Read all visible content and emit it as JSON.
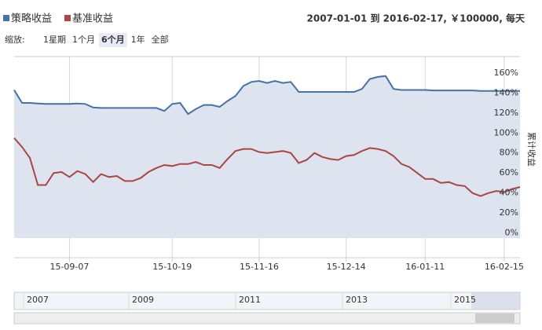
{
  "chart_data": {
    "type": "line",
    "subtitle": "2007-01-01 到 2016-02-17, ￥100000, 每天",
    "range_selector": {
      "label": "缩放:",
      "buttons": [
        "1星期",
        "1个月",
        "6个月",
        "1年",
        "全部"
      ],
      "selected": 2
    },
    "y_axis_title": "累计收益",
    "categories": [
      null,
      null,
      null,
      null,
      null,
      null,
      null,
      "15-09-07",
      null,
      null,
      null,
      null,
      null,
      null,
      null,
      null,
      null,
      null,
      null,
      null,
      "15-10-19",
      null,
      null,
      null,
      null,
      null,
      null,
      null,
      null,
      null,
      null,
      "15-11-16",
      null,
      null,
      null,
      null,
      null,
      null,
      null,
      null,
      null,
      null,
      "15-12-14",
      null,
      null,
      null,
      null,
      null,
      null,
      null,
      null,
      null,
      "16-01-11",
      null,
      null,
      null,
      null,
      null,
      null,
      null,
      null,
      null,
      "16-02-15",
      null,
      null
    ],
    "series": [
      {
        "name": "策略收益",
        "color": "#4572a7",
        "area": true,
        "values": [
          143,
          130,
          130,
          129.5,
          129,
          129,
          129,
          129,
          129.5,
          129,
          125.5,
          125,
          125,
          125,
          125,
          125,
          125,
          125,
          125,
          122,
          129,
          130,
          119,
          124,
          128,
          128,
          126,
          132,
          137,
          147,
          151,
          152,
          150,
          152,
          150,
          151,
          141,
          141,
          141,
          141,
          141,
          141,
          141,
          141,
          144,
          154,
          156,
          157,
          144,
          143,
          143,
          143,
          143,
          142.5,
          142.5,
          142.5,
          142.5,
          142.5,
          142.5,
          142,
          142,
          142,
          142,
          142,
          142
        ]
      },
      {
        "name": "基准收益",
        "color": "#aa4643",
        "values": [
          95,
          86,
          75,
          48,
          48,
          60,
          61,
          56,
          62,
          59,
          51,
          59,
          56,
          57,
          52,
          52,
          55,
          61,
          65,
          68,
          67,
          69,
          69,
          71,
          68,
          68,
          65,
          74,
          82,
          84,
          84,
          81,
          80,
          81,
          82,
          80,
          70,
          73,
          80,
          76,
          74,
          73,
          77,
          78,
          82,
          85,
          84,
          82,
          77,
          69,
          66,
          60,
          54,
          54,
          50,
          51,
          48,
          47,
          40,
          37,
          40,
          42,
          41,
          44,
          46
        ]
      }
    ],
    "ylim": [
      -5,
      174
    ],
    "yticks": [
      {
        "value": 0,
        "label": "0%"
      },
      {
        "value": 20,
        "label": "20%"
      },
      {
        "value": 40,
        "label": "40%"
      },
      {
        "value": 60,
        "label": "60%"
      },
      {
        "value": 80,
        "label": "80%"
      },
      {
        "value": 100,
        "label": "100%"
      },
      {
        "value": 120,
        "label": "120%"
      },
      {
        "value": 140,
        "label": "140%"
      },
      {
        "value": 160,
        "label": "160%"
      }
    ],
    "grid": "x",
    "navigator_labels": [
      "2007",
      "2009",
      "2011",
      "2013",
      "2015"
    ]
  }
}
